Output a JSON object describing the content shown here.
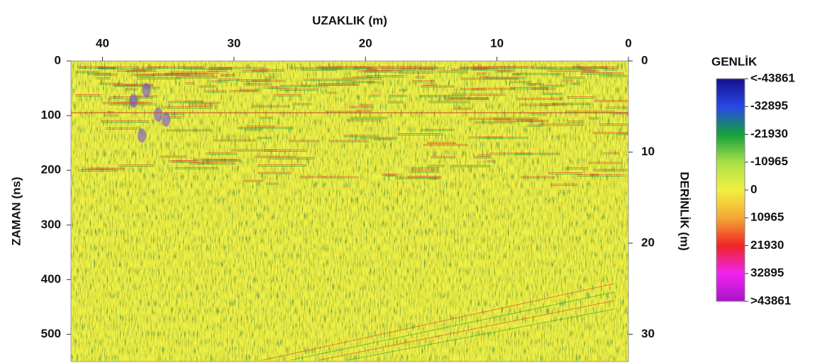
{
  "chart_data": {
    "type": "radargram",
    "title": "UZAKLIK (m)",
    "x_label": "UZAKLIK (m)",
    "y_label": "ZAMAN (ns)",
    "y2_label": "DERİNLİK (m)",
    "xlim": [
      42.4,
      0
    ],
    "xticks": [
      40,
      30,
      20,
      10,
      0
    ],
    "ylim": [
      0,
      550
    ],
    "yticks": [
      0,
      100,
      200,
      300,
      400,
      500
    ],
    "y2lim": [
      0,
      33
    ],
    "y2ticks": [
      0,
      10,
      20,
      30
    ],
    "colorbar": {
      "title": "GENLİK",
      "lim": [
        -43861,
        43861
      ],
      "ticks": [
        {
          "value": -43861,
          "label": "<-43861"
        },
        -32895,
        -21930,
        -10965,
        0,
        10965,
        21930,
        32895,
        {
          "value": 43861,
          "label": ">43861"
        }
      ],
      "colors": [
        "#14108c",
        "#2848e8",
        "#14a03c",
        "#a8e048",
        "#f2f040",
        "#f4a834",
        "#f02424",
        "#f024f0",
        "#a814c8"
      ]
    }
  }
}
